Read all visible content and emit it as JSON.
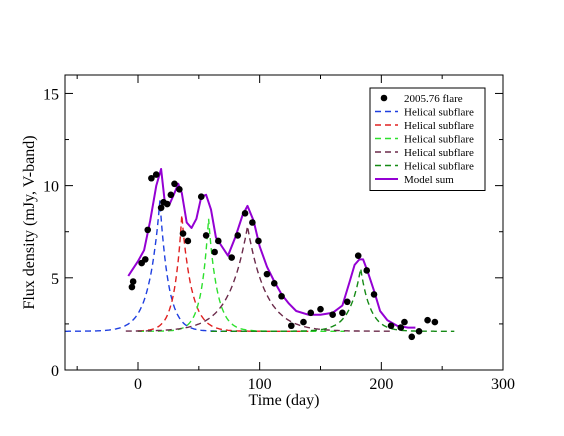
{
  "chart_data": {
    "type": "line",
    "xlabel": "Time (day)",
    "ylabel": "Flux density (mJy, V-band)",
    "xlim": [
      -60,
      300
    ],
    "ylim": [
      0,
      16
    ],
    "xticks": [
      0,
      100,
      200,
      300
    ],
    "yticks": [
      0,
      5,
      10,
      15
    ],
    "grid": false,
    "legend_position": "top-right",
    "observed": {
      "name": "2005.76 flare",
      "points": [
        [
          -5,
          4.5
        ],
        [
          -4,
          4.8
        ],
        [
          3,
          5.8
        ],
        [
          6,
          6.0
        ],
        [
          8,
          7.6
        ],
        [
          11,
          10.4
        ],
        [
          15,
          10.6
        ],
        [
          19,
          8.8
        ],
        [
          21,
          9.1
        ],
        [
          24,
          9.0
        ],
        [
          27,
          9.5
        ],
        [
          30,
          10.1
        ],
        [
          34,
          9.8
        ],
        [
          37,
          7.4
        ],
        [
          41,
          7.0
        ],
        [
          52,
          9.4
        ],
        [
          56,
          7.3
        ],
        [
          63,
          6.4
        ],
        [
          66,
          7.0
        ],
        [
          77,
          6.1
        ],
        [
          82,
          7.3
        ],
        [
          88,
          8.5
        ],
        [
          94,
          8.0
        ],
        [
          99,
          7.0
        ],
        [
          106,
          5.2
        ],
        [
          112,
          4.7
        ],
        [
          118,
          4.0
        ],
        [
          126,
          2.4
        ],
        [
          136,
          2.6
        ],
        [
          142,
          3.1
        ],
        [
          150,
          3.3
        ],
        [
          160,
          3.0
        ],
        [
          168,
          3.1
        ],
        [
          172,
          3.7
        ],
        [
          181,
          6.2
        ],
        [
          188,
          5.4
        ],
        [
          194,
          4.1
        ],
        [
          208,
          2.4
        ],
        [
          216,
          2.3
        ],
        [
          219,
          2.6
        ],
        [
          225,
          1.8
        ],
        [
          231,
          2.1
        ],
        [
          238,
          2.7
        ],
        [
          244,
          2.6
        ]
      ]
    },
    "baseline": 2.1,
    "subflares": [
      {
        "name": "Helical subflare",
        "color": "#1f3fe0",
        "peak_time": 18,
        "amplitude": 7.1,
        "rise": 9,
        "decay": 7,
        "start": -60,
        "end": 130
      },
      {
        "name": "Helical subflare",
        "color": "#e02020",
        "peak_time": 36,
        "amplitude": 6.3,
        "rise": 6,
        "decay": 8,
        "start": 0,
        "end": 140
      },
      {
        "name": "Helical subflare",
        "color": "#2ee02e",
        "peak_time": 58,
        "amplitude": 6.1,
        "rise": 6,
        "decay": 7,
        "start": 0,
        "end": 170
      },
      {
        "name": "Helical subflare",
        "color": "#6b2a4a",
        "peak_time": 90,
        "amplitude": 5.7,
        "rise": 15,
        "decay": 15,
        "start": -10,
        "end": 210
      },
      {
        "name": "Helical subflare",
        "color": "#158a15",
        "peak_time": 183,
        "amplitude": 3.4,
        "rise": 9,
        "decay": 8,
        "start": 60,
        "end": 260
      }
    ],
    "model_sum": {
      "name": "Model sum",
      "color": "#9400d3",
      "points": [
        [
          -8,
          5.1
        ],
        [
          -5,
          5.4
        ],
        [
          0,
          5.9
        ],
        [
          5,
          6.5
        ],
        [
          10,
          8.1
        ],
        [
          15,
          10.0
        ],
        [
          19,
          10.9
        ],
        [
          22,
          9.1
        ],
        [
          26,
          9.0
        ],
        [
          30,
          9.6
        ],
        [
          33,
          10.1
        ],
        [
          36,
          9.6
        ],
        [
          40,
          8.0
        ],
        [
          44,
          7.7
        ],
        [
          48,
          8.2
        ],
        [
          52,
          9.4
        ],
        [
          56,
          9.5
        ],
        [
          60,
          8.7
        ],
        [
          64,
          7.2
        ],
        [
          69,
          6.7
        ],
        [
          74,
          6.2
        ],
        [
          80,
          7.2
        ],
        [
          86,
          8.4
        ],
        [
          90,
          8.9
        ],
        [
          95,
          8.1
        ],
        [
          100,
          6.7
        ],
        [
          106,
          5.6
        ],
        [
          112,
          4.8
        ],
        [
          118,
          4.1
        ],
        [
          124,
          3.6
        ],
        [
          130,
          3.2
        ],
        [
          140,
          3.0
        ],
        [
          150,
          3.0
        ],
        [
          160,
          3.1
        ],
        [
          168,
          3.5
        ],
        [
          174,
          4.8
        ],
        [
          178,
          5.7
        ],
        [
          182,
          6.0
        ],
        [
          185,
          6.0
        ],
        [
          189,
          5.3
        ],
        [
          194,
          4.3
        ],
        [
          199,
          3.2
        ],
        [
          205,
          2.7
        ],
        [
          213,
          2.4
        ],
        [
          222,
          2.3
        ],
        [
          228,
          2.3
        ]
      ]
    }
  }
}
